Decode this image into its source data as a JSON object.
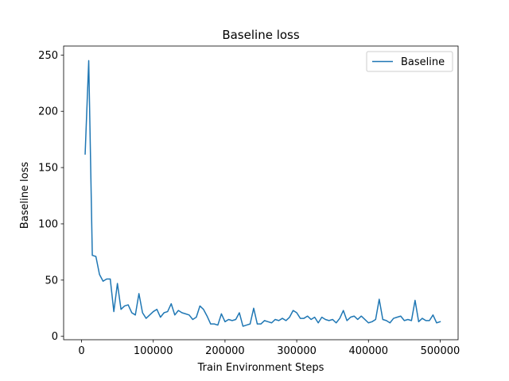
{
  "chart_data": {
    "type": "line",
    "title": "Baseline loss",
    "xlabel": "Train Environment Steps",
    "ylabel": "Baseline loss",
    "xlim": [
      -25000,
      525000
    ],
    "ylim": [
      -3,
      258
    ],
    "xticks": [
      0,
      100000,
      200000,
      300000,
      400000,
      500000
    ],
    "yticks": [
      0,
      50,
      100,
      150,
      200,
      250
    ],
    "grid": false,
    "legend_position": "top-right",
    "series": [
      {
        "name": "Baseline",
        "color": "#1f77b4",
        "x": [
          5000,
          10000,
          15000,
          20000,
          25000,
          30000,
          35000,
          40000,
          45000,
          50000,
          55000,
          60000,
          65000,
          70000,
          75000,
          80000,
          85000,
          90000,
          95000,
          100000,
          105000,
          110000,
          115000,
          120000,
          125000,
          130000,
          135000,
          140000,
          145000,
          150000,
          155000,
          160000,
          165000,
          170000,
          175000,
          180000,
          185000,
          190000,
          195000,
          200000,
          205000,
          210000,
          215000,
          220000,
          225000,
          230000,
          235000,
          240000,
          245000,
          250000,
          255000,
          260000,
          265000,
          270000,
          275000,
          280000,
          285000,
          290000,
          295000,
          300000,
          305000,
          310000,
          315000,
          320000,
          325000,
          330000,
          335000,
          340000,
          345000,
          350000,
          355000,
          360000,
          365000,
          370000,
          375000,
          380000,
          385000,
          390000,
          395000,
          400000,
          405000,
          410000,
          415000,
          420000,
          425000,
          430000,
          435000,
          440000,
          445000,
          450000,
          455000,
          460000,
          465000,
          470000,
          475000,
          480000,
          485000,
          490000,
          495000,
          500000
        ],
        "values": [
          162,
          245,
          72,
          71,
          55,
          49,
          51,
          51,
          22,
          47,
          24,
          27,
          28,
          21,
          19,
          38,
          21,
          16,
          19,
          22,
          24,
          17,
          21,
          22,
          29,
          19,
          23,
          21,
          20,
          19,
          15,
          17,
          27,
          24,
          18,
          11,
          11,
          10,
          20,
          13,
          15,
          14,
          15,
          21,
          9,
          10,
          11,
          25,
          11,
          11,
          14,
          13,
          12,
          15,
          14,
          16,
          14,
          17,
          23,
          21,
          16,
          16,
          18,
          15,
          17,
          12,
          17,
          15,
          14,
          15,
          12,
          16,
          23,
          14,
          17,
          18,
          15,
          18,
          15,
          12,
          13,
          15,
          33,
          15,
          14,
          12,
          16,
          17,
          18,
          14,
          15,
          14,
          32,
          13,
          16,
          14,
          14,
          19,
          12,
          13
        ]
      }
    ]
  }
}
